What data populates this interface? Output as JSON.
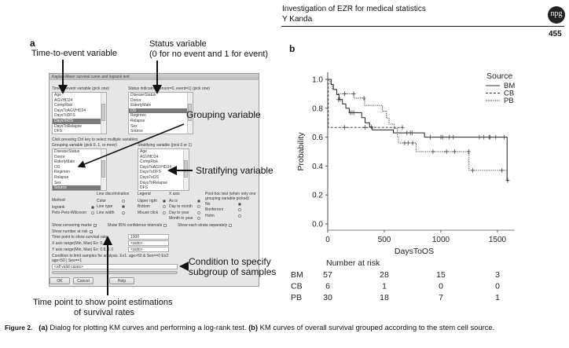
{
  "header": {
    "title": "Investigation of EZR for medical statistics",
    "author": "Y Kanda",
    "page_number": "455",
    "logo": "npg"
  },
  "panel_a": {
    "label": "a",
    "annotations": {
      "time_to_event": "Time-to-event variable",
      "status_1": "Status variable",
      "status_2": "(0 for no event and 1 for event)",
      "grouping": "Grouping variable",
      "stratifying": "Stratifying variable",
      "condition_1": "Condition to specify",
      "condition_2": "subgroup of samples",
      "time_point_1": "Time point to show point estimations",
      "time_point_2": "of survival rates"
    },
    "dialog": {
      "title": "Kaplan-Meier survival curve and logrank test",
      "time_to_event_label": "Time-to-event variable (pick one)",
      "time_to_event_items": [
        "Age",
        "AGVHD24",
        "CompRisk",
        "DaysToAGVHD24",
        "DaysToDFS",
        "DaysToOS",
        "DaysToRelapse",
        "DFS"
      ],
      "time_to_event_selected": 5,
      "status_label": "Status indicator (censor=0, event=1) (pick one)",
      "status_items": [
        "DiseaseStatus",
        "Donor",
        "ElderlyMale",
        "OS",
        "Regimen",
        "Relapse",
        "Sex",
        "Source"
      ],
      "status_selected": 3,
      "ctrl_hint": "Click pressing Ctrl key to select multiple variables",
      "grouping_label": "Grouping variable (pick 0, 1, or more)",
      "grouping_items": [
        "DiseaseStatus",
        "Donor",
        "ElderlyMale",
        "OS",
        "Regimen",
        "Relapse",
        "Sex",
        "Source"
      ],
      "grouping_selected": 7,
      "stratifying_label": "Stratifying variable (pick 0 or 1)",
      "stratifying_items": [
        "Age",
        "AGVHD24",
        "CompRisk",
        "DaysToAGVHD24",
        "DaysToDFS",
        "DaysToOS",
        "DaysToRelapse",
        "DFS"
      ],
      "method": {
        "label": "Method",
        "options": [
          "logrank",
          "Peto-Peto-Wilcoxon"
        ],
        "selected": 0
      },
      "line_discrimination": {
        "label": "Line discrimination",
        "options": [
          "Color",
          "Line type",
          "Line width"
        ],
        "selected": 1
      },
      "legend": {
        "label": "Legend",
        "options": [
          "Upper right",
          "Bottom",
          "Mouse click"
        ],
        "selected": 0
      },
      "x_axis": {
        "label": "X axis",
        "options": [
          "As is",
          "Day to month",
          "Day to year",
          "Month to year"
        ],
        "selected": 0
      },
      "post_hoc": {
        "label": "Post-hoc test (when only one grouping variable picked)",
        "options": [
          "No",
          "Bonferroni",
          "Holm"
        ],
        "selected": 0
      },
      "checkboxes": [
        {
          "label": "Show censoring marks",
          "checked": true
        },
        {
          "label": "Show 95% confidence intervals",
          "checked": false
        },
        {
          "label": "Show each strata separately",
          "checked": false
        },
        {
          "label": "Show number at risk",
          "checked": true
        }
      ],
      "time_point_label": "Time point to show survival rate",
      "time_point_value": "1000",
      "x_range_label": "X axis range(Min, Max) Ex: 0, 365",
      "x_range_value": "<auto>",
      "y_range_label": "Y axis range(Min, Max) Ex: 0.8, 1.0",
      "y_range_value": "<auto>",
      "condition_label": "Condition to limit samples for analysis. Ex1: age>50 & Sex==0  Ex2: age<50 | Sex==1",
      "condition_value": "<all valid cases>",
      "ok": "OK",
      "cancel": "Cancel",
      "help": "Help"
    }
  },
  "panel_b": {
    "label": "b"
  },
  "chart_data": {
    "type": "line",
    "subtype": "kaplan-meier step",
    "xlabel": "DaysToOS",
    "ylabel": "Probability",
    "xlim": [
      0,
      1650
    ],
    "ylim": [
      0,
      1.0
    ],
    "xticks": [
      0,
      500,
      1000,
      1500
    ],
    "yticks": [
      "0.0",
      "0.2",
      "0.4",
      "0.6",
      "0.8",
      "1.0"
    ],
    "legend_title": "Source",
    "legend_placement": "top-right",
    "series": [
      {
        "name": "BM",
        "dash": "solid",
        "steps": [
          [
            0,
            1.0
          ],
          [
            30,
            0.965
          ],
          [
            50,
            0.93
          ],
          [
            80,
            0.895
          ],
          [
            100,
            0.86
          ],
          [
            130,
            0.83
          ],
          [
            160,
            0.8
          ],
          [
            190,
            0.77
          ],
          [
            300,
            0.735
          ],
          [
            330,
            0.7
          ],
          [
            370,
            0.67
          ],
          [
            395,
            0.65
          ],
          [
            580,
            0.63
          ],
          [
            855,
            0.6
          ],
          [
            1585,
            0.3
          ]
        ],
        "end": 1600,
        "censors": [
          [
            95,
            0.86
          ],
          [
            110,
            0.86
          ],
          [
            200,
            0.77
          ],
          [
            215,
            0.77
          ],
          [
            230,
            0.77
          ],
          [
            385,
            0.67
          ],
          [
            700,
            0.63
          ],
          [
            730,
            0.63
          ],
          [
            745,
            0.63
          ],
          [
            905,
            0.6
          ],
          [
            1000,
            0.6
          ],
          [
            1015,
            0.6
          ],
          [
            1075,
            0.6
          ],
          [
            1110,
            0.6
          ],
          [
            1340,
            0.6
          ],
          [
            1380,
            0.6
          ],
          [
            1425,
            0.6
          ],
          [
            1435,
            0.6
          ],
          [
            1485,
            0.6
          ],
          [
            1560,
            0.6
          ]
        ]
      },
      {
        "name": "CB",
        "dash": "dashed",
        "steps": [
          [
            0,
            1.0
          ],
          [
            5,
            0.667
          ]
        ],
        "end": 660,
        "censors": [
          [
            150,
            0.667
          ],
          [
            330,
            0.667
          ],
          [
            660,
            0.667
          ]
        ]
      },
      {
        "name": "PB",
        "dash": "dotted",
        "steps": [
          [
            0,
            1.0
          ],
          [
            20,
            0.97
          ],
          [
            40,
            0.93
          ],
          [
            80,
            0.9
          ],
          [
            230,
            0.87
          ],
          [
            326,
            0.82
          ],
          [
            484,
            0.78
          ],
          [
            519,
            0.73
          ],
          [
            542,
            0.69
          ],
          [
            588,
            0.66
          ],
          [
            616,
            0.6
          ],
          [
            625,
            0.56
          ],
          [
            781,
            0.5
          ],
          [
            1248,
            0.37
          ],
          [
            1583,
            0.3
          ]
        ],
        "end": 1595,
        "censors": [
          [
            150,
            0.9
          ],
          [
            320,
            0.87
          ],
          [
            230,
            0.9
          ],
          [
            680,
            0.56
          ],
          [
            710,
            0.56
          ],
          [
            750,
            0.56
          ],
          [
            930,
            0.5
          ],
          [
            1050,
            0.5
          ],
          [
            1120,
            0.5
          ],
          [
            1245,
            0.5
          ],
          [
            1280,
            0.37
          ],
          [
            1540,
            0.37
          ],
          [
            1590,
            0.3
          ]
        ]
      }
    ],
    "number_at_risk": {
      "title": "Number at risk",
      "times": [
        0,
        500,
        1000,
        1500
      ],
      "rows": [
        {
          "name": "BM",
          "values": [
            "57",
            "28",
            "15",
            "3"
          ]
        },
        {
          "name": "CB",
          "values": [
            "6",
            "1",
            "0",
            "0"
          ]
        },
        {
          "name": "PB",
          "values": [
            "30",
            "18",
            "7",
            "1"
          ]
        }
      ]
    }
  },
  "caption": {
    "label": "Figure 2.",
    "text_a_label": "(a)",
    "text_a": " Dialog for plotting KM curves and performing a log-rank test. ",
    "text_b_label": "(b)",
    "text_b": " KM curves of overall survival grouped according to the stem cell source."
  }
}
